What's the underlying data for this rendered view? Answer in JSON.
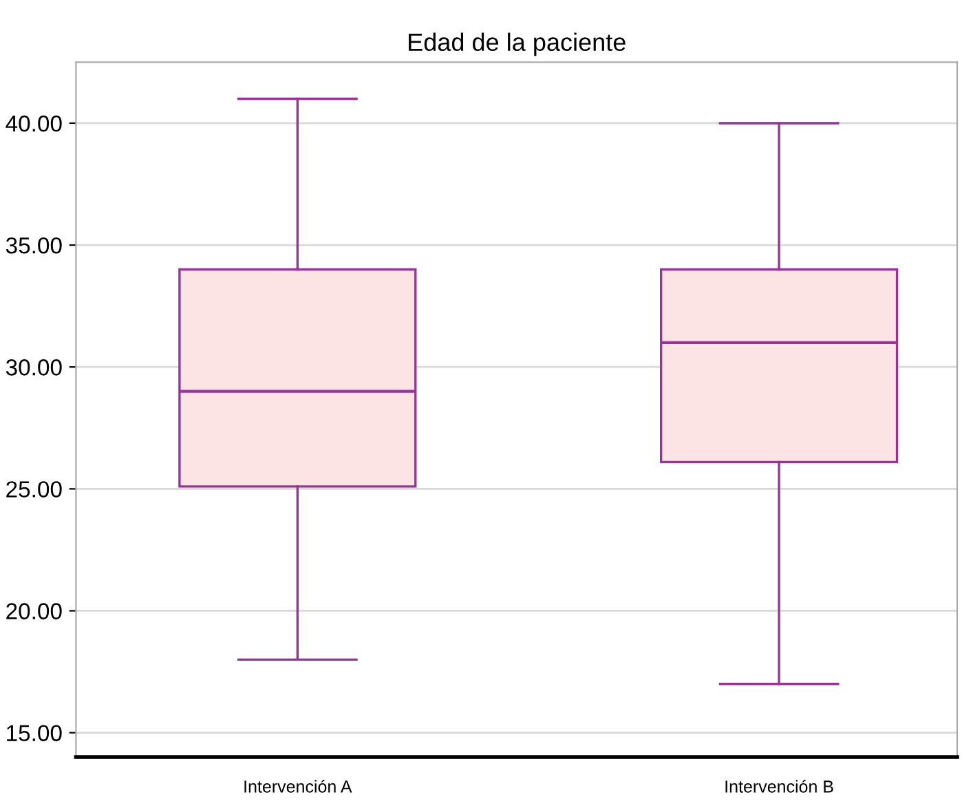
{
  "chart_data": {
    "type": "box",
    "title": "Edad de la paciente",
    "categories": [
      "Intervención A",
      "Intervención B"
    ],
    "series": [
      {
        "color": "#993399",
        "boxes": [
          {
            "low": 18,
            "q1": 25.1,
            "median": 29,
            "q3": 34,
            "high": 41
          },
          {
            "low": 17,
            "q1": 26.1,
            "median": 31,
            "q3": 34,
            "high": 40
          }
        ]
      }
    ],
    "color": "#fde4e4",
    "ylim": [
      14,
      42.5
    ],
    "yticks": [
      {
        "value": 15,
        "label": "15.00"
      },
      {
        "value": 20,
        "label": "20.00"
      },
      {
        "value": 25,
        "label": "25.00"
      },
      {
        "value": 30,
        "label": "30.00"
      },
      {
        "value": 35,
        "label": "35.00"
      },
      {
        "value": 40,
        "label": "40.00"
      }
    ],
    "grid": "y"
  }
}
